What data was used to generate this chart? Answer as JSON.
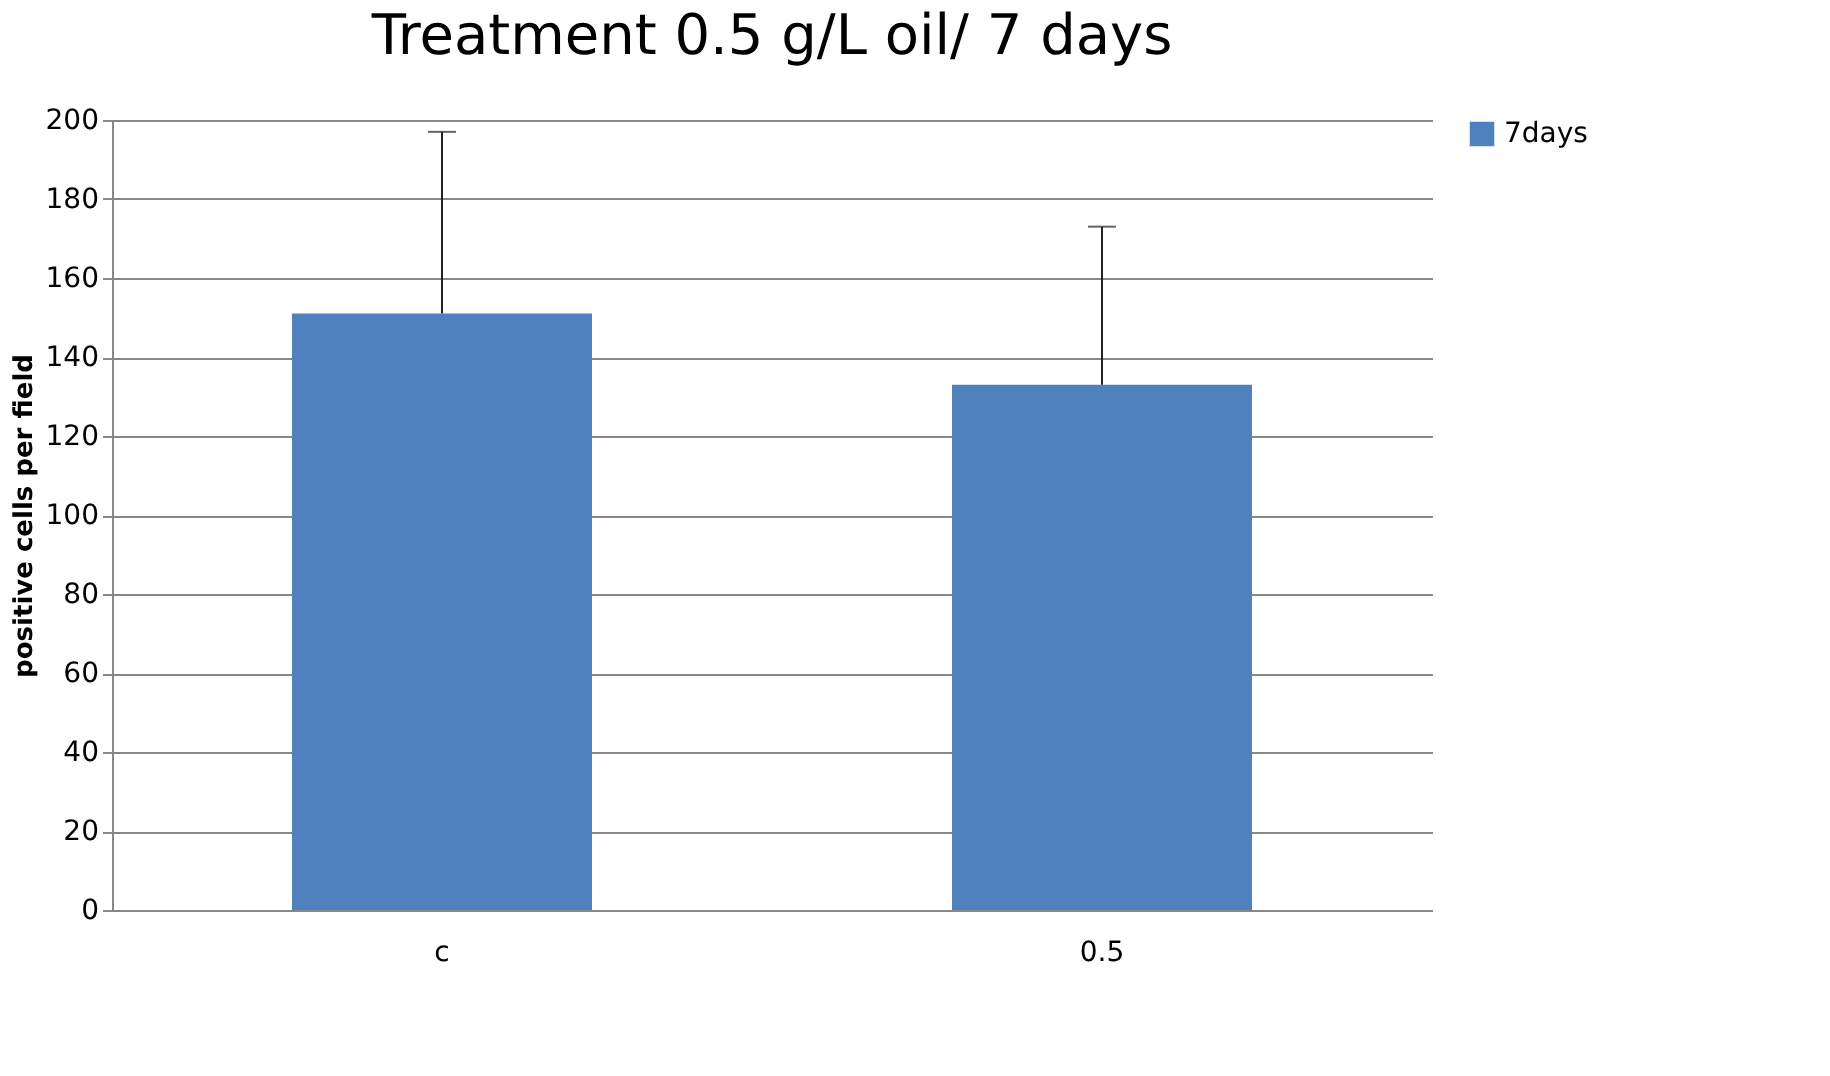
{
  "chart_data": {
    "type": "bar",
    "title": "Treatment 0.5 g/L oil/ 7 days",
    "ylabel": "positive cells per field",
    "categories": [
      "c",
      "0.5"
    ],
    "series": [
      {
        "name": "7days",
        "color": "#4f81bd",
        "values": [
          151,
          133
        ],
        "errors": [
          [
            151,
            197
          ],
          [
            133,
            173
          ]
        ]
      }
    ],
    "ylim": [
      0,
      200
    ],
    "yticks": [
      0,
      20,
      40,
      60,
      80,
      100,
      120,
      140,
      160,
      180,
      200
    ],
    "grid": "y",
    "legend": "right"
  }
}
